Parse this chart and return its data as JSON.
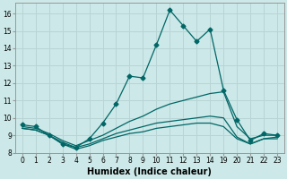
{
  "xlabel": "Humidex (Indice chaleur)",
  "bg_color": "#cce8e8",
  "grid_color": "#b8d4d4",
  "line_color": "#006666",
  "x_labels": [
    "0",
    "1",
    "2",
    "3",
    "4",
    "5",
    "6",
    "7",
    "8",
    "9",
    "10",
    "11",
    "12",
    "13",
    "14",
    "19",
    "20",
    "21",
    "22",
    "23"
  ],
  "x_indices": [
    0,
    1,
    2,
    3,
    4,
    5,
    6,
    7,
    8,
    9,
    10,
    11,
    12,
    13,
    14,
    15,
    16,
    17,
    18,
    19
  ],
  "series": [
    {
      "xi": [
        0,
        1,
        2,
        3,
        4,
        5,
        6,
        7,
        8,
        9,
        10,
        11,
        12,
        13,
        14,
        15,
        16,
        17,
        18,
        19
      ],
      "y": [
        9.6,
        9.5,
        9.0,
        8.5,
        8.3,
        8.8,
        9.7,
        10.8,
        12.4,
        12.3,
        14.2,
        16.2,
        15.3,
        14.4,
        15.1,
        11.6,
        9.9,
        8.7,
        9.1,
        9.0
      ],
      "marker": "D",
      "ms": 2.5
    },
    {
      "xi": [
        0,
        1,
        2,
        3,
        4,
        5,
        6,
        7,
        8,
        9,
        10,
        11,
        12,
        13,
        14,
        15,
        16,
        17,
        18,
        19
      ],
      "y": [
        9.5,
        9.4,
        9.1,
        8.7,
        8.4,
        8.7,
        9.0,
        9.4,
        9.8,
        10.1,
        10.5,
        10.8,
        11.0,
        11.2,
        11.4,
        11.5,
        9.5,
        8.8,
        9.0,
        9.0
      ],
      "marker": null,
      "ms": 0
    },
    {
      "xi": [
        0,
        1,
        2,
        3,
        4,
        5,
        6,
        7,
        8,
        9,
        10,
        11,
        12,
        13,
        14,
        15,
        16,
        17,
        18,
        19
      ],
      "y": [
        9.4,
        9.3,
        9.0,
        8.6,
        8.3,
        8.5,
        8.8,
        9.1,
        9.3,
        9.5,
        9.7,
        9.8,
        9.9,
        10.0,
        10.1,
        10.0,
        8.9,
        8.5,
        8.8,
        8.9
      ],
      "marker": null,
      "ms": 0
    },
    {
      "xi": [
        0,
        1,
        2,
        3,
        4,
        5,
        6,
        7,
        8,
        9,
        10,
        11,
        12,
        13,
        14,
        15,
        16,
        17,
        18,
        19
      ],
      "y": [
        9.4,
        9.3,
        9.0,
        8.5,
        8.2,
        8.4,
        8.7,
        8.9,
        9.1,
        9.2,
        9.4,
        9.5,
        9.6,
        9.7,
        9.7,
        9.5,
        8.8,
        8.5,
        8.8,
        8.8
      ],
      "marker": null,
      "ms": 0
    }
  ],
  "xlim": [
    -0.5,
    19.5
  ],
  "ylim": [
    8.0,
    16.6
  ],
  "yticks": [
    8,
    9,
    10,
    11,
    12,
    13,
    14,
    15,
    16
  ],
  "tick_fontsize": 5.5,
  "xlabel_fontsize": 7.0
}
